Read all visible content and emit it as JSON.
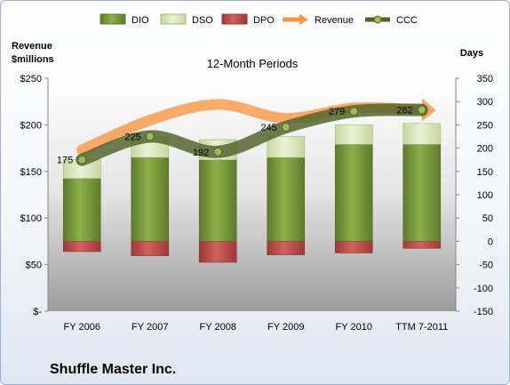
{
  "chart_data": {
    "type": "bar",
    "title": "12-Month Periods",
    "left_axis_label": [
      "Revenue",
      "$millions"
    ],
    "right_axis_label": "Days",
    "categories": [
      "FY 2006",
      "FY 2007",
      "FY 2008",
      "FY 2009",
      "FY 2010",
      "TTM 7-2011"
    ],
    "left_ylim": [
      0,
      250
    ],
    "left_ticks": [
      "$-",
      "$50",
      "$100",
      "$150",
      "$200",
      "$250"
    ],
    "right_ylim": [
      -150,
      350
    ],
    "right_ticks": [
      "-150",
      "-100",
      "-50",
      "0",
      "50",
      "100",
      "150",
      "200",
      "250",
      "300",
      "350"
    ],
    "series": [
      {
        "name": "DIO",
        "axis": "right",
        "stack": "positive",
        "values": [
          135,
          180,
          175,
          180,
          208,
          208
        ],
        "color": "#77933c"
      },
      {
        "name": "DSO",
        "axis": "right",
        "stack": "positive",
        "values": [
          40,
          45,
          43,
          45,
          42,
          45
        ],
        "color": "#d7e4bd"
      },
      {
        "name": "DPO",
        "axis": "right",
        "stack": "negative",
        "values": [
          -22,
          -31,
          -45,
          -29,
          -25,
          -15
        ],
        "color": "#c0504d"
      },
      {
        "name": "Revenue",
        "axis": "left",
        "type": "line",
        "values": [
          173,
          205,
          222,
          207,
          218,
          216
        ],
        "color": "#f79646"
      },
      {
        "name": "CCC",
        "axis": "right",
        "type": "line",
        "values": [
          175,
          225,
          192,
          245,
          279,
          282
        ],
        "color": "#4f6228"
      }
    ],
    "data_labels": [
      "175",
      "225",
      "192",
      "245",
      "279",
      "282"
    ],
    "legend_position": "top",
    "grid": false
  },
  "company": "Shuffle Master Inc."
}
